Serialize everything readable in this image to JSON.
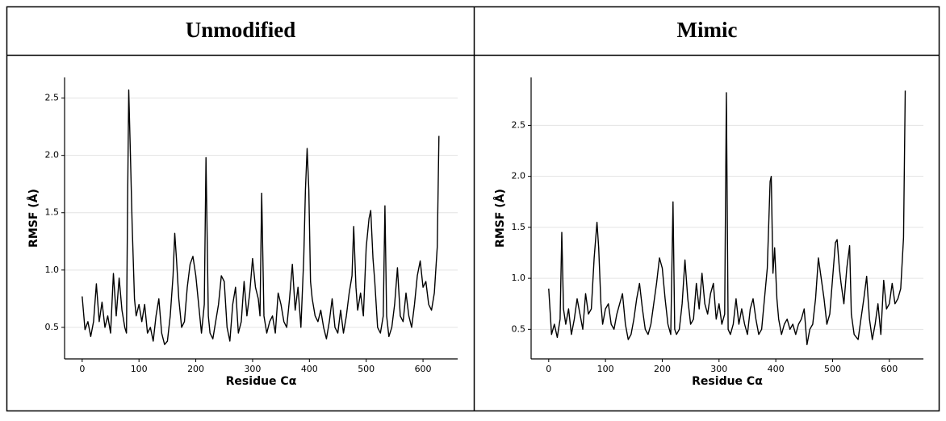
{
  "chart_data": [
    {
      "type": "line",
      "title": "Unmodified",
      "xlabel": "Residue Cα",
      "ylabel": "RMSF (Å)",
      "color": "#000000",
      "grid": true,
      "xlim": [
        -31,
        661
      ],
      "ylim": [
        0.225,
        2.68
      ],
      "xticks": [
        0,
        100,
        200,
        300,
        400,
        500,
        600
      ],
      "yticks": [
        0.5,
        {
          "value": 1.0,
          "label": "1.0"
        },
        1.5,
        {
          "value": 2.0,
          "label": "2.0"
        },
        2.5
      ],
      "x": [
        0,
        5,
        10,
        15,
        20,
        25,
        30,
        35,
        40,
        45,
        50,
        55,
        60,
        65,
        70,
        75,
        78,
        80,
        82,
        85,
        88,
        92,
        95,
        100,
        105,
        110,
        115,
        120,
        125,
        130,
        135,
        140,
        145,
        150,
        155,
        160,
        163,
        166,
        170,
        175,
        180,
        185,
        190,
        195,
        200,
        205,
        210,
        215,
        218,
        222,
        225,
        230,
        235,
        240,
        245,
        250,
        255,
        260,
        265,
        270,
        275,
        280,
        285,
        290,
        295,
        300,
        305,
        310,
        313,
        316,
        320,
        325,
        330,
        335,
        340,
        345,
        350,
        355,
        360,
        365,
        370,
        375,
        380,
        385,
        390,
        393,
        396,
        399,
        402,
        405,
        410,
        415,
        420,
        425,
        430,
        435,
        440,
        445,
        450,
        455,
        460,
        465,
        470,
        475,
        478,
        482,
        485,
        490,
        495,
        500,
        505,
        508,
        512,
        515,
        520,
        525,
        530,
        533,
        536,
        540,
        545,
        550,
        555,
        560,
        565,
        570,
        575,
        580,
        585,
        590,
        595,
        600,
        605,
        610,
        615,
        620,
        625,
        628
      ],
      "values": [
        0.77,
        0.48,
        0.55,
        0.42,
        0.55,
        0.88,
        0.55,
        0.72,
        0.5,
        0.6,
        0.45,
        0.97,
        0.6,
        0.93,
        0.65,
        0.5,
        0.45,
        1.6,
        2.57,
        2.0,
        1.4,
        0.75,
        0.6,
        0.7,
        0.55,
        0.7,
        0.45,
        0.5,
        0.38,
        0.6,
        0.75,
        0.45,
        0.35,
        0.38,
        0.6,
        0.95,
        1.32,
        1.1,
        0.75,
        0.5,
        0.55,
        0.85,
        1.05,
        1.12,
        0.95,
        0.7,
        0.45,
        0.7,
        1.98,
        0.6,
        0.45,
        0.4,
        0.55,
        0.7,
        0.95,
        0.9,
        0.5,
        0.38,
        0.7,
        0.85,
        0.45,
        0.55,
        0.9,
        0.6,
        0.8,
        1.1,
        0.85,
        0.75,
        0.6,
        1.67,
        0.6,
        0.45,
        0.55,
        0.6,
        0.45,
        0.8,
        0.7,
        0.55,
        0.5,
        0.75,
        1.05,
        0.65,
        0.85,
        0.5,
        1.1,
        1.7,
        2.06,
        1.7,
        0.9,
        0.75,
        0.6,
        0.55,
        0.65,
        0.5,
        0.4,
        0.55,
        0.75,
        0.5,
        0.45,
        0.65,
        0.45,
        0.6,
        0.8,
        0.95,
        1.38,
        0.85,
        0.65,
        0.8,
        0.6,
        1.2,
        1.45,
        1.52,
        1.1,
        0.9,
        0.5,
        0.45,
        0.6,
        1.56,
        0.6,
        0.42,
        0.5,
        0.7,
        1.02,
        0.6,
        0.55,
        0.8,
        0.6,
        0.5,
        0.7,
        0.95,
        1.08,
        0.85,
        0.9,
        0.7,
        0.65,
        0.8,
        1.2,
        2.17
      ]
    },
    {
      "type": "line",
      "title": "Mimic",
      "xlabel": "Residue Cα",
      "ylabel": "RMSF (Å)",
      "color": "#000000",
      "grid": true,
      "xlim": [
        -31,
        660
      ],
      "ylim": [
        0.21,
        2.97
      ],
      "xticks": [
        0,
        100,
        200,
        300,
        400,
        500,
        600
      ],
      "yticks": [
        0.5,
        {
          "value": 1.0,
          "label": "1.0"
        },
        1.5,
        {
          "value": 2.0,
          "label": "2.0"
        },
        2.5
      ],
      "x": [
        0,
        5,
        10,
        15,
        20,
        23,
        26,
        30,
        35,
        40,
        45,
        50,
        55,
        60,
        65,
        70,
        75,
        80,
        85,
        88,
        92,
        95,
        100,
        105,
        110,
        115,
        120,
        125,
        130,
        135,
        140,
        145,
        150,
        155,
        160,
        165,
        170,
        175,
        180,
        185,
        190,
        195,
        200,
        205,
        210,
        215,
        219,
        222,
        225,
        230,
        235,
        240,
        245,
        250,
        255,
        260,
        265,
        270,
        275,
        280,
        285,
        290,
        295,
        300,
        305,
        310,
        313,
        316,
        320,
        325,
        330,
        335,
        340,
        345,
        350,
        355,
        360,
        365,
        370,
        375,
        380,
        385,
        390,
        392,
        395,
        398,
        402,
        405,
        410,
        415,
        420,
        425,
        430,
        435,
        440,
        445,
        450,
        455,
        460,
        465,
        470,
        475,
        480,
        485,
        490,
        495,
        500,
        505,
        508,
        512,
        515,
        520,
        525,
        530,
        533,
        538,
        545,
        550,
        555,
        560,
        565,
        570,
        575,
        580,
        585,
        590,
        595,
        600,
        605,
        610,
        615,
        620,
        625,
        628
      ],
      "values": [
        0.9,
        0.45,
        0.55,
        0.42,
        0.6,
        1.45,
        0.7,
        0.55,
        0.7,
        0.45,
        0.6,
        0.8,
        0.65,
        0.5,
        0.85,
        0.65,
        0.7,
        1.2,
        1.55,
        1.3,
        0.75,
        0.55,
        0.7,
        0.75,
        0.55,
        0.5,
        0.65,
        0.75,
        0.85,
        0.55,
        0.4,
        0.45,
        0.6,
        0.8,
        0.95,
        0.7,
        0.5,
        0.45,
        0.55,
        0.75,
        0.95,
        1.2,
        1.1,
        0.8,
        0.55,
        0.45,
        1.75,
        0.5,
        0.45,
        0.5,
        0.75,
        1.18,
        0.8,
        0.55,
        0.6,
        0.95,
        0.7,
        1.05,
        0.75,
        0.65,
        0.85,
        0.95,
        0.6,
        0.75,
        0.55,
        0.65,
        2.82,
        0.5,
        0.45,
        0.55,
        0.8,
        0.55,
        0.7,
        0.55,
        0.45,
        0.7,
        0.8,
        0.6,
        0.45,
        0.5,
        0.8,
        1.1,
        1.95,
        2.0,
        1.05,
        1.3,
        0.8,
        0.6,
        0.45,
        0.55,
        0.6,
        0.5,
        0.55,
        0.45,
        0.55,
        0.6,
        0.7,
        0.35,
        0.5,
        0.55,
        0.8,
        1.2,
        1.0,
        0.8,
        0.55,
        0.65,
        1.0,
        1.35,
        1.38,
        1.1,
        0.95,
        0.75,
        1.1,
        1.32,
        0.65,
        0.45,
        0.4,
        0.6,
        0.8,
        1.02,
        0.6,
        0.4,
        0.55,
        0.75,
        0.45,
        0.98,
        0.7,
        0.75,
        0.95,
        0.75,
        0.8,
        0.9,
        1.4,
        2.84
      ]
    }
  ]
}
